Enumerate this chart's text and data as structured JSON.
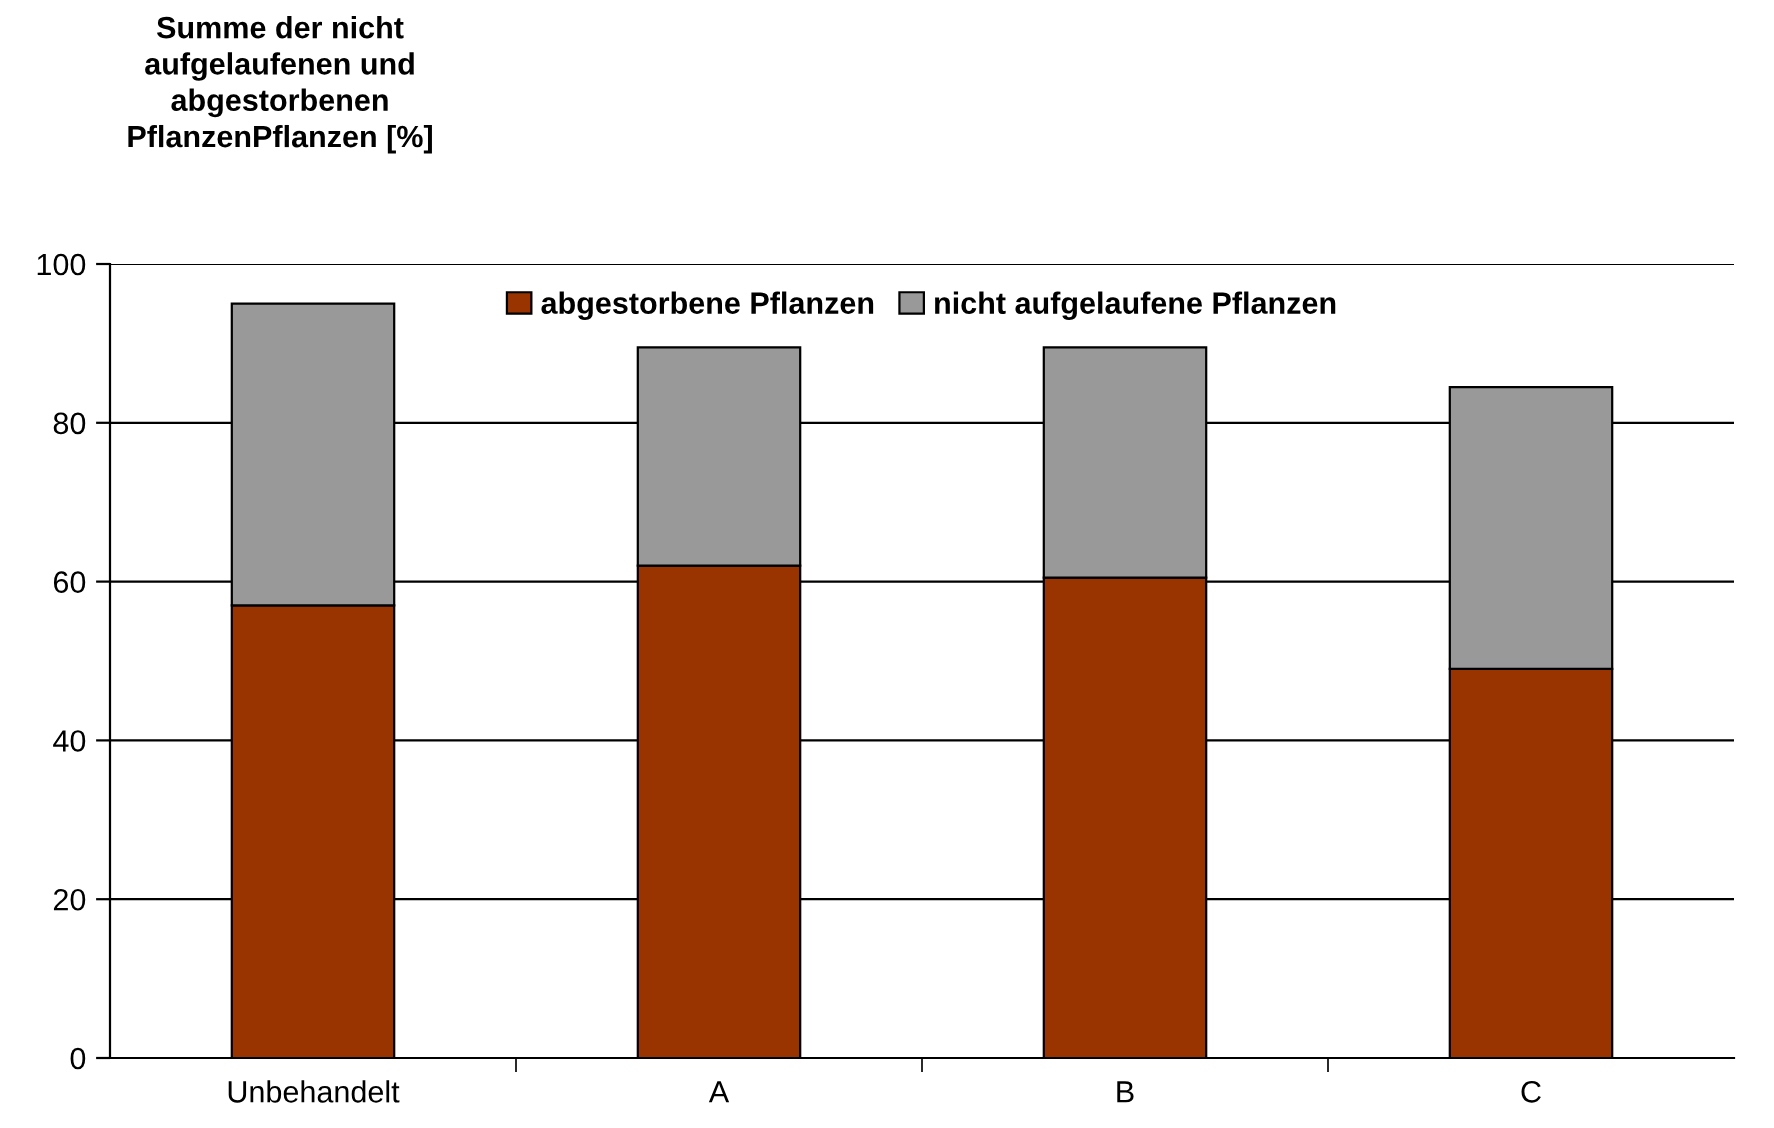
{
  "chart_data": {
    "type": "bar",
    "stacked": true,
    "ylabel": "Summe der nicht aufgelaufenen und abgestorbenen PflanzenPflanzen [%]",
    "categories": [
      "Unbehandelt",
      "A",
      "B",
      "C"
    ],
    "series": [
      {
        "name": "abgestorbene Pflanzen",
        "color": "#993300",
        "values": [
          57,
          62,
          60.5,
          49
        ]
      },
      {
        "name": "nicht aufgelaufene Pflanzen",
        "color": "#999999",
        "values": [
          38,
          27.5,
          29,
          35.5
        ]
      }
    ],
    "ylim": [
      0,
      100
    ],
    "yticks": [
      0,
      20,
      40,
      60,
      80,
      100
    ],
    "grid": "y",
    "legend": "top"
  }
}
